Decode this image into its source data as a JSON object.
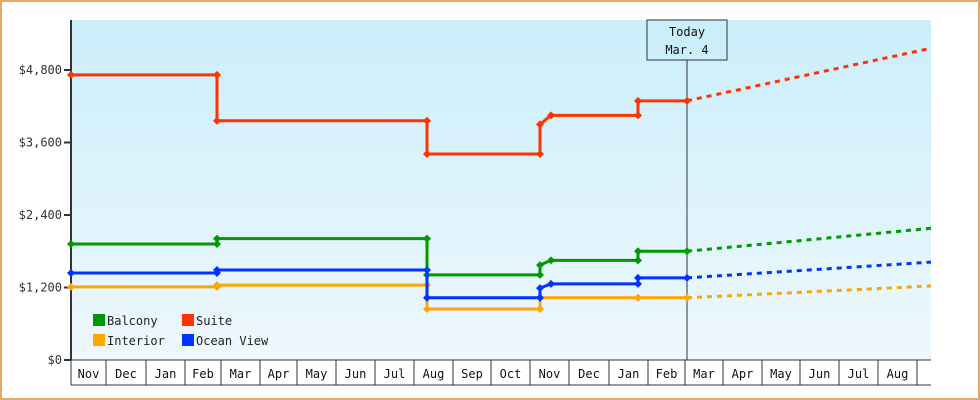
{
  "chart_data": {
    "type": "line",
    "title": "",
    "xlabel": "",
    "ylabel": "",
    "ylim": [
      0,
      5600
    ],
    "y_ticks": [
      "$0",
      "$1,200",
      "$2,400",
      "$3,600",
      "$4,800"
    ],
    "y_tick_values": [
      0,
      1200,
      2400,
      3600,
      4800
    ],
    "x_tick_labels": [
      "Nov",
      "Dec",
      "Jan",
      "Feb",
      "Mar",
      "Apr",
      "May",
      "Jun",
      "Jul",
      "Aug",
      "Sep",
      "Oct",
      "Nov",
      "Dec",
      "Jan",
      "Feb",
      "Mar",
      "Apr",
      "May",
      "Jun",
      "Jul",
      "Aug"
    ],
    "grid": false,
    "legend_position": "lower-left",
    "today_marker": {
      "line1": "Today",
      "line2": "Mar. 4"
    },
    "step_style": "step-after, solid for history, dotted projection after today",
    "series": [
      {
        "name": "Balcony",
        "color": "#009900",
        "points": [
          {
            "date": "Nov (start)",
            "value": 1920
          },
          {
            "date": "Feb",
            "value": 1920
          },
          {
            "date": "Feb",
            "value": 2010
          },
          {
            "date": "Aug",
            "value": 2010
          },
          {
            "date": "Aug",
            "value": 1410
          },
          {
            "date": "Nov",
            "value": 1410
          },
          {
            "date": "Nov",
            "value": 1570
          },
          {
            "date": "Nov",
            "value": 1650
          },
          {
            "date": "Jan",
            "value": 1650
          },
          {
            "date": "Jan",
            "value": 1800
          },
          {
            "date": "Mar 4 (today)",
            "value": 1800
          }
        ],
        "projection_end": {
          "date": "Aug (end)",
          "value": 2180
        }
      },
      {
        "name": "Suite",
        "color": "#ff3300",
        "points": [
          {
            "date": "Nov (start)",
            "value": 4720
          },
          {
            "date": "Feb",
            "value": 4720
          },
          {
            "date": "Feb",
            "value": 3960
          },
          {
            "date": "Aug",
            "value": 3960
          },
          {
            "date": "Aug",
            "value": 3410
          },
          {
            "date": "Nov",
            "value": 3410
          },
          {
            "date": "Nov",
            "value": 3900
          },
          {
            "date": "Nov",
            "value": 4050
          },
          {
            "date": "Jan",
            "value": 4050
          },
          {
            "date": "Jan",
            "value": 4290
          },
          {
            "date": "Mar 4 (today)",
            "value": 4290
          }
        ],
        "projection_end": {
          "date": "Aug (end)",
          "value": 5160
        }
      },
      {
        "name": "Interior",
        "color": "#ffa500",
        "points": [
          {
            "date": "Nov (start)",
            "value": 1210
          },
          {
            "date": "Feb",
            "value": 1210
          },
          {
            "date": "Feb",
            "value": 1240
          },
          {
            "date": "Aug",
            "value": 1240
          },
          {
            "date": "Aug",
            "value": 845
          },
          {
            "date": "Nov",
            "value": 845
          },
          {
            "date": "Nov",
            "value": 1030
          },
          {
            "date": "Jan",
            "value": 1030
          },
          {
            "date": "Mar 4 (today)",
            "value": 1030
          }
        ],
        "projection_end": {
          "date": "Aug (end)",
          "value": 1225
        }
      },
      {
        "name": "Ocean View",
        "color": "#0033ff",
        "points": [
          {
            "date": "Nov (start)",
            "value": 1440
          },
          {
            "date": "Feb",
            "value": 1440
          },
          {
            "date": "Feb",
            "value": 1490
          },
          {
            "date": "Aug",
            "value": 1490
          },
          {
            "date": "Aug",
            "value": 1030
          },
          {
            "date": "Nov",
            "value": 1030
          },
          {
            "date": "Nov",
            "value": 1190
          },
          {
            "date": "Nov",
            "value": 1260
          },
          {
            "date": "Jan",
            "value": 1260
          },
          {
            "date": "Jan",
            "value": 1360
          },
          {
            "date": "Mar 4 (today)",
            "value": 1360
          }
        ],
        "projection_end": {
          "date": "Aug (end)",
          "value": 1620
        }
      }
    ]
  },
  "legend": [
    {
      "label": "Balcony",
      "color": "#009900"
    },
    {
      "label": "Suite",
      "color": "#ff3300"
    },
    {
      "label": "Interior",
      "color": "#ffa500"
    },
    {
      "label": "Ocean View",
      "color": "#0033ff"
    }
  ],
  "today": {
    "line1": "Today",
    "line2": "Mar. 4"
  },
  "colors": {
    "frame_border": "#e8a868",
    "plot_bg_top": "#cbeefb",
    "plot_bg_bottom": "#eef8fd",
    "axis": "#333333"
  }
}
